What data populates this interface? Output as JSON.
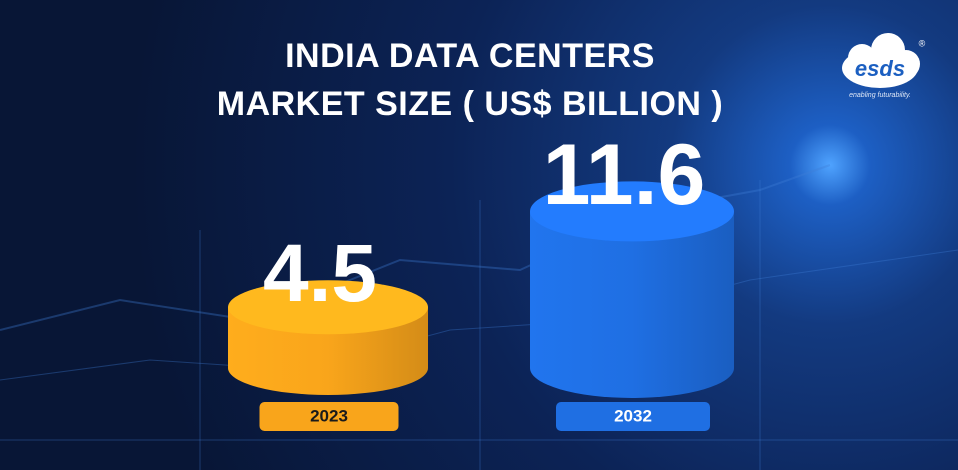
{
  "chart_data": {
    "type": "cylinder",
    "title": "INDIA DATA CENTERS MARKET SIZE ( US$ BILLION )",
    "categories": [
      "2023",
      "2032"
    ],
    "values": [
      4.5,
      11.6
    ],
    "colors": [
      "#f9a51b",
      "#1f6fe3"
    ]
  },
  "brand": {
    "name": "esds",
    "mark": "®",
    "tagline": "enabling futurability."
  }
}
